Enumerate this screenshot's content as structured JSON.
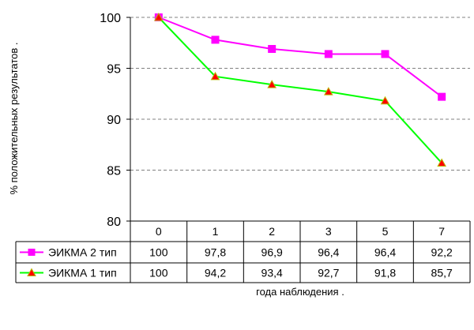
{
  "chart_data": {
    "type": "line",
    "categories": [
      "0",
      "1",
      "2",
      "3",
      "5",
      "7"
    ],
    "series": [
      {
        "name": "ЭИКМА 2 тип",
        "values": [
          100,
          97.8,
          96.9,
          96.4,
          96.4,
          92.2
        ],
        "labels": [
          "100",
          "97,8",
          "96,9",
          "96,4",
          "96,4",
          "92,2"
        ],
        "color": "#ff00ff",
        "marker": "square"
      },
      {
        "name": "ЭИКМА 1 тип",
        "values": [
          100,
          94.2,
          93.4,
          92.7,
          91.8,
          85.7
        ],
        "labels": [
          "100",
          "94,2",
          "93,4",
          "92,7",
          "91,8",
          "85,7"
        ],
        "color": "#00ff00",
        "marker": "triangle",
        "marker_color": "#ff0000"
      }
    ],
    "y_ticks": [
      "80",
      "85",
      "90",
      "95",
      "100"
    ],
    "ylim": [
      80,
      100
    ],
    "xlabel": "года наблюдения  .",
    "ylabel": "% положительных результатов  .",
    "grid": "horizontal dashed",
    "legend": "data table"
  }
}
